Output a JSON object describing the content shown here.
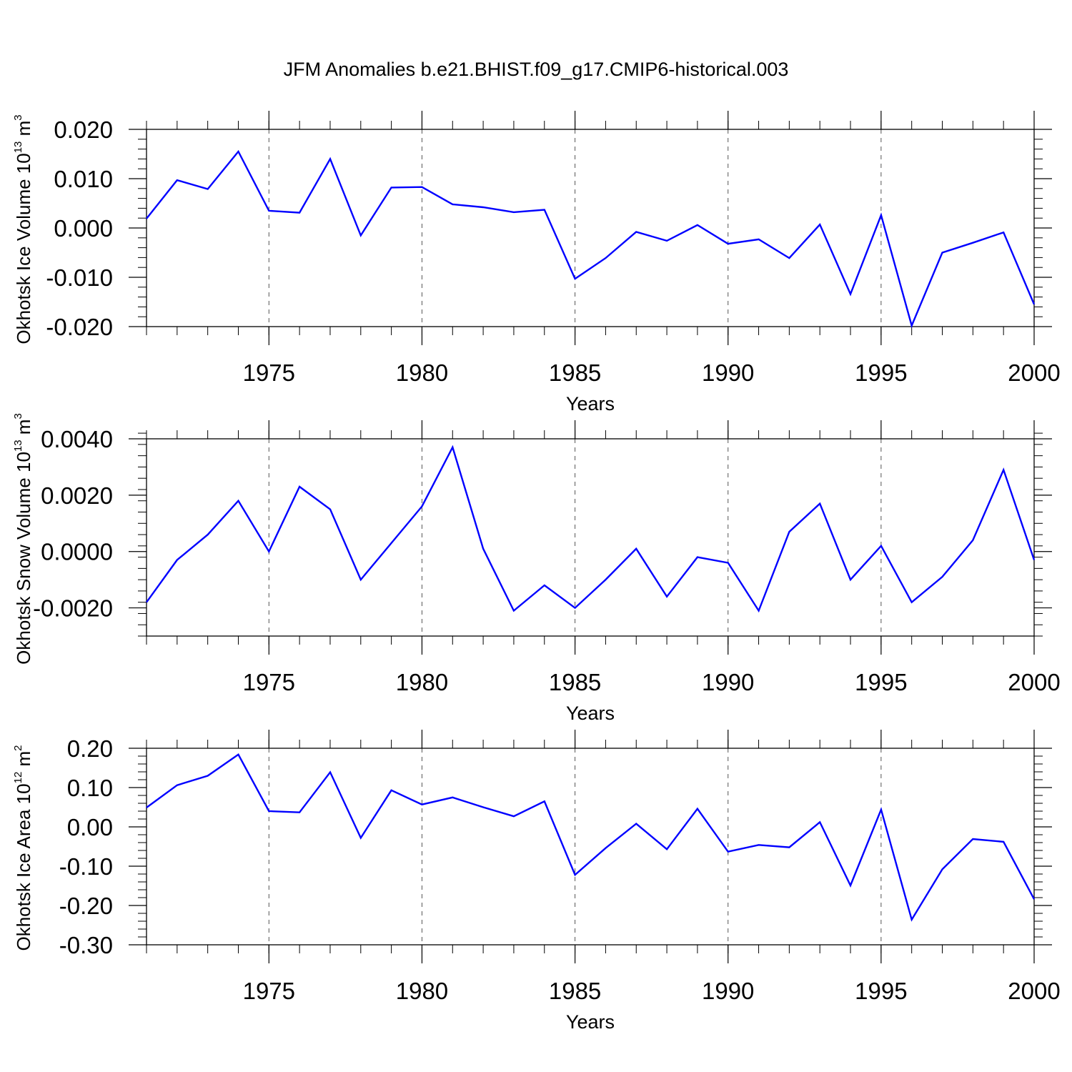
{
  "chart_data": [
    {
      "type": "line",
      "title": "JFM Anomalies b.e21.BHIST.f09_g17.CMIP6-historical.003",
      "ylabel": "Okhotsk Ice Volume 10",
      "ylabel_exp": "13",
      "ylabel_unit": "m",
      "ylabel_unit_exp": "3",
      "xlabel": "Years",
      "xlim": [
        1971,
        2000
      ],
      "ylim": [
        -0.02,
        0.02
      ],
      "xticks": [
        1975,
        1980,
        1985,
        1990,
        1995,
        2000
      ],
      "xtick_labels": [
        "1975",
        "1980",
        "1985",
        "1990",
        "1995",
        "2000"
      ],
      "yticks": [
        -0.02,
        -0.01,
        0.0,
        0.01,
        0.02
      ],
      "ytick_labels": [
        "-0.020",
        "-0.010",
        "0.000",
        "0.010",
        "0.020"
      ],
      "yminor_step": 0.002,
      "grid": "vertical-dashed",
      "line_color": "#0000ff",
      "x": [
        1971,
        1972,
        1973,
        1974,
        1975,
        1976,
        1977,
        1978,
        1979,
        1980,
        1981,
        1982,
        1983,
        1984,
        1985,
        1986,
        1987,
        1988,
        1989,
        1990,
        1991,
        1992,
        1993,
        1994,
        1995,
        1996,
        1997,
        1998,
        1999,
        2000
      ],
      "values": [
        0.0019,
        0.0097,
        0.0079,
        0.0155,
        0.0035,
        0.0031,
        0.014,
        -0.0015,
        0.0082,
        0.0083,
        0.0048,
        0.0042,
        0.0032,
        0.0037,
        -0.0103,
        -0.0061,
        -0.0008,
        -0.0026,
        0.0006,
        -0.0032,
        -0.0023,
        -0.0061,
        0.0007,
        -0.0134,
        0.0026,
        -0.0198,
        -0.005,
        -0.003,
        -0.0009,
        -0.0155
      ]
    },
    {
      "type": "line",
      "title": "",
      "ylabel": "Okhotsk Snow Volume 10",
      "ylabel_exp": "13",
      "ylabel_unit": "m",
      "ylabel_unit_exp": "3",
      "xlabel": "Years",
      "xlim": [
        1971,
        2000
      ],
      "ylim": [
        -0.003,
        0.004
      ],
      "xticks": [
        1975,
        1980,
        1985,
        1990,
        1995,
        2000
      ],
      "xtick_labels": [
        "1975",
        "1980",
        "1985",
        "1990",
        "1995",
        "2000"
      ],
      "yticks": [
        -0.002,
        0.0,
        0.002,
        0.004
      ],
      "ytick_labels": [
        "-0.0020",
        "0.0000",
        "0.0020",
        "0.0040"
      ],
      "yminor_step": 0.0004,
      "grid": "vertical-dashed",
      "line_color": "#0000ff",
      "x": [
        1971,
        1972,
        1973,
        1974,
        1975,
        1976,
        1977,
        1978,
        1979,
        1980,
        1981,
        1982,
        1983,
        1984,
        1985,
        1986,
        1987,
        1988,
        1989,
        1990,
        1991,
        1992,
        1993,
        1994,
        1995,
        1996,
        1997,
        1998,
        1999,
        2000
      ],
      "values": [
        -0.0018,
        -0.0003,
        0.0006,
        0.0018,
        0.0,
        0.0023,
        0.0015,
        -0.001,
        0.0003,
        0.0016,
        0.0037,
        0.0001,
        -0.0021,
        -0.0012,
        -0.002,
        -0.001,
        0.0001,
        -0.0016,
        -0.0002,
        -0.0004,
        -0.0021,
        0.0007,
        0.0017,
        -0.001,
        0.0002,
        -0.0018,
        -0.0009,
        0.0004,
        0.0029,
        -0.0003
      ]
    },
    {
      "type": "line",
      "title": "",
      "ylabel": "Okhotsk Ice Area 10",
      "ylabel_exp": "12",
      "ylabel_unit": "m",
      "ylabel_unit_exp": "2",
      "xlabel": "Years",
      "xlim": [
        1971,
        2000
      ],
      "ylim": [
        -0.3,
        0.2
      ],
      "xticks": [
        1975,
        1980,
        1985,
        1990,
        1995,
        2000
      ],
      "xtick_labels": [
        "1975",
        "1980",
        "1985",
        "1990",
        "1995",
        "2000"
      ],
      "yticks": [
        -0.3,
        -0.2,
        -0.1,
        0.0,
        0.1,
        0.2
      ],
      "ytick_labels": [
        "-0.30",
        "-0.20",
        "-0.10",
        "0.00",
        "0.10",
        "0.20"
      ],
      "yminor_step": 0.02,
      "grid": "vertical-dashed",
      "line_color": "#0000ff",
      "x": [
        1971,
        1972,
        1973,
        1974,
        1975,
        1976,
        1977,
        1978,
        1979,
        1980,
        1981,
        1982,
        1983,
        1984,
        1985,
        1986,
        1987,
        1988,
        1989,
        1990,
        1991,
        1992,
        1993,
        1994,
        1995,
        1996,
        1997,
        1998,
        1999,
        2000
      ],
      "values": [
        0.049,
        0.106,
        0.13,
        0.184,
        0.04,
        0.037,
        0.139,
        -0.028,
        0.093,
        0.057,
        0.075,
        0.05,
        0.027,
        0.065,
        -0.122,
        -0.054,
        0.008,
        -0.057,
        0.046,
        -0.063,
        -0.046,
        -0.052,
        0.012,
        -0.149,
        0.044,
        -0.236,
        -0.108,
        -0.031,
        -0.038,
        -0.184
      ]
    }
  ]
}
